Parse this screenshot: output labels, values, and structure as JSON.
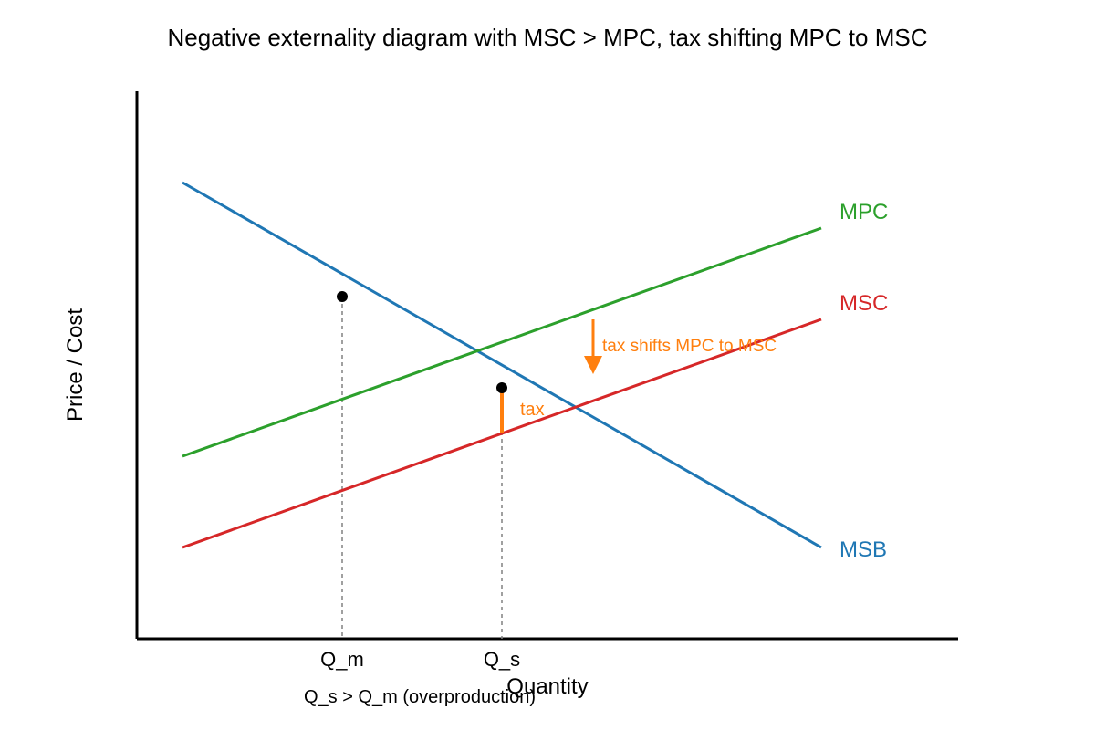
{
  "title": "Negative externality diagram with MSC > MPC, tax shifting MPC to MSC",
  "axes": {
    "x_label": "Quantity",
    "y_label": "Price / Cost"
  },
  "curves": {
    "msb": {
      "label": "MSB",
      "color": "#1f77b4"
    },
    "mpc": {
      "label": "MPC",
      "color": "#2ca02c"
    },
    "msc": {
      "label": "MSC",
      "color": "#d62728"
    }
  },
  "markers": {
    "q_m": "Q_m",
    "q_s": "Q_s"
  },
  "annotations": {
    "tax": "tax",
    "shift": "tax shifts MPC to MSC",
    "note": "Q_s > Q_m (overproduction)",
    "accent_color": "#ff7f0e",
    "guide_color": "#808080"
  }
}
